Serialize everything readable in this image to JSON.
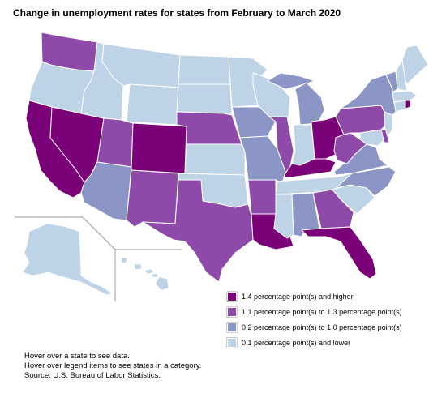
{
  "title": "Change in unemployment rates for states from February to March 2020",
  "colors": {
    "cat1": "#7a0177",
    "cat2": "#8d4aa9",
    "cat3": "#8c96c6",
    "cat4": "#bfd3e6",
    "border": "#ffffff",
    "inset_line": "#999999"
  },
  "legend": {
    "items": [
      {
        "label": "1.4 percentage point(s) and higher",
        "color": "#7a0177"
      },
      {
        "label": "1.1 percentage point(s) to 1.3 percentage point(s)",
        "color": "#8d4aa9"
      },
      {
        "label": "0.2 percentage point(s) to 1.0 percentage point(s)",
        "color": "#8c96c6"
      },
      {
        "label": "0.1 percentage point(s) and lower",
        "color": "#bfd3e6"
      }
    ]
  },
  "notes": {
    "hover_state": "Hover over a state to see data.",
    "hover_legend": "Hover over legend items to see states in a category.",
    "source": "Source: U.S. Bureau of Labor Statistics."
  },
  "state_categories": {
    "WA": 2,
    "OR": 4,
    "CA": 1,
    "NV": 1,
    "ID": 4,
    "MT": 4,
    "WY": 4,
    "UT": 2,
    "AZ": 3,
    "CO": 1,
    "NM": 2,
    "ND": 4,
    "SD": 4,
    "NE": 2,
    "KS": 4,
    "OK": 4,
    "TX": 2,
    "MN": 4,
    "IA": 3,
    "MO": 3,
    "AR": 2,
    "LA": 1,
    "WI": 4,
    "IL": 2,
    "MI": 3,
    "IN": 4,
    "OH": 1,
    "KY": 1,
    "TN": 4,
    "MS": 4,
    "AL": 3,
    "GA": 2,
    "FL": 1,
    "SC": 4,
    "NC": 3,
    "VA": 3,
    "WV": 2,
    "PA": 2,
    "NY": 3,
    "VT": 3,
    "NH": 4,
    "ME": 4,
    "MA": 4,
    "RI": 1,
    "CT": 4,
    "NJ": 4,
    "DE": 2,
    "MD": 4,
    "AK": 4,
    "HI": 4
  }
}
